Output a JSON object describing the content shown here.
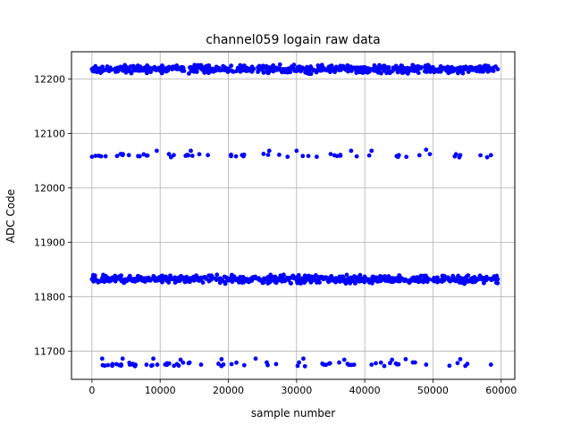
{
  "chart_data": {
    "type": "scatter",
    "title": "channel059 logain raw data",
    "xlabel": "sample number",
    "ylabel": "ADC Code",
    "xlim": [
      -3000,
      62000
    ],
    "ylim": [
      11648,
      12250
    ],
    "x_ticks": [
      0,
      10000,
      20000,
      30000,
      40000,
      50000,
      60000
    ],
    "x_tick_labels": [
      "0",
      "10000",
      "20000",
      "30000",
      "40000",
      "50000",
      "60000"
    ],
    "y_ticks": [
      11700,
      11800,
      11900,
      12000,
      12100,
      12200
    ],
    "y_tick_labels": [
      "11700",
      "11800",
      "11900",
      "12000",
      "12100",
      "12200"
    ],
    "grid": true,
    "legend": "none",
    "marker_color": "#0000ff",
    "series": [
      {
        "label": "dense upper band",
        "x_range": [
          0,
          59500
        ],
        "y_range": [
          12208,
          12228
        ],
        "y_center": 12218,
        "density": "dense",
        "sample_points": [
          [
            0,
            12218
          ],
          [
            10000,
            12216
          ],
          [
            20000,
            12219
          ],
          [
            30000,
            12217
          ],
          [
            40000,
            12218
          ],
          [
            50000,
            12216
          ],
          [
            59500,
            12218
          ]
        ]
      },
      {
        "label": "sparse upper band",
        "x_range": [
          0,
          58500
        ],
        "y_range": [
          12056,
          12070
        ],
        "y_center": 12060,
        "density": "sparse",
        "sample_points": [
          [
            0,
            12057
          ],
          [
            2000,
            12058
          ],
          [
            4500,
            12060
          ],
          [
            7000,
            12058
          ],
          [
            9500,
            12068
          ],
          [
            12000,
            12060
          ],
          [
            14500,
            12068
          ],
          [
            17000,
            12060
          ],
          [
            22000,
            12060
          ],
          [
            26000,
            12068
          ],
          [
            30000,
            12068
          ],
          [
            35000,
            12062
          ],
          [
            38000,
            12068
          ],
          [
            41000,
            12068
          ],
          [
            45000,
            12060
          ],
          [
            49000,
            12070
          ],
          [
            54000,
            12060
          ],
          [
            58500,
            12060
          ]
        ]
      },
      {
        "label": "dense lower band",
        "x_range": [
          0,
          59500
        ],
        "y_range": [
          11822,
          11842
        ],
        "y_center": 11832,
        "density": "dense",
        "sample_points": [
          [
            0,
            11832
          ],
          [
            10000,
            11830
          ],
          [
            20000,
            11833
          ],
          [
            30000,
            11831
          ],
          [
            40000,
            11832
          ],
          [
            50000,
            11830
          ],
          [
            59500,
            11832
          ]
        ]
      },
      {
        "label": "sparse lower band",
        "x_range": [
          1500,
          58500
        ],
        "y_range": [
          11672,
          11688
        ],
        "y_center": 11676,
        "density": "sparse",
        "sample_points": [
          [
            1500,
            11686
          ],
          [
            3000,
            11676
          ],
          [
            4500,
            11686
          ],
          [
            6000,
            11675
          ],
          [
            8000,
            11675
          ],
          [
            9000,
            11686
          ],
          [
            11000,
            11675
          ],
          [
            13000,
            11684
          ],
          [
            16000,
            11675
          ],
          [
            19000,
            11685
          ],
          [
            24000,
            11686
          ],
          [
            27000,
            11676
          ],
          [
            31000,
            11686
          ],
          [
            34000,
            11675
          ],
          [
            37000,
            11684
          ],
          [
            41000,
            11675
          ],
          [
            44000,
            11684
          ],
          [
            46000,
            11685
          ],
          [
            49000,
            11675
          ],
          [
            54000,
            11685
          ],
          [
            58500,
            11675
          ]
        ]
      }
    ]
  }
}
